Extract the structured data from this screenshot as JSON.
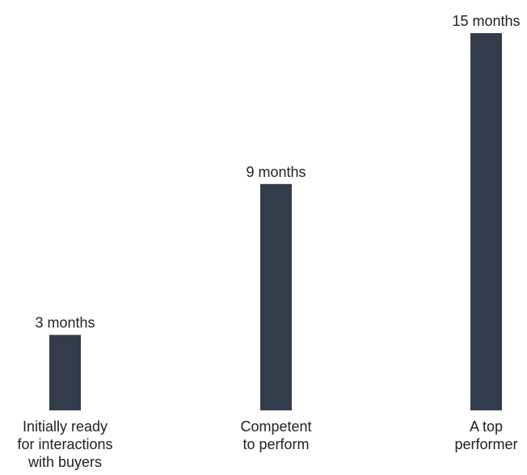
{
  "chart_data": {
    "type": "bar",
    "title": "",
    "xlabel": "",
    "ylabel": "",
    "categories": [
      [
        "Initially ready",
        "for interactions",
        "with buyers"
      ],
      [
        "Competent",
        "to perform"
      ],
      [
        "A top",
        "performer"
      ]
    ],
    "values": [
      3,
      9,
      15
    ],
    "value_labels": [
      "3 months",
      "9 months",
      "15 months"
    ],
    "unit": "months",
    "ylim": [
      0,
      15
    ],
    "grid": false,
    "legend": "none",
    "colors": {
      "bar": "#333c4a",
      "text": "#222222",
      "background": "#ffffff"
    }
  }
}
